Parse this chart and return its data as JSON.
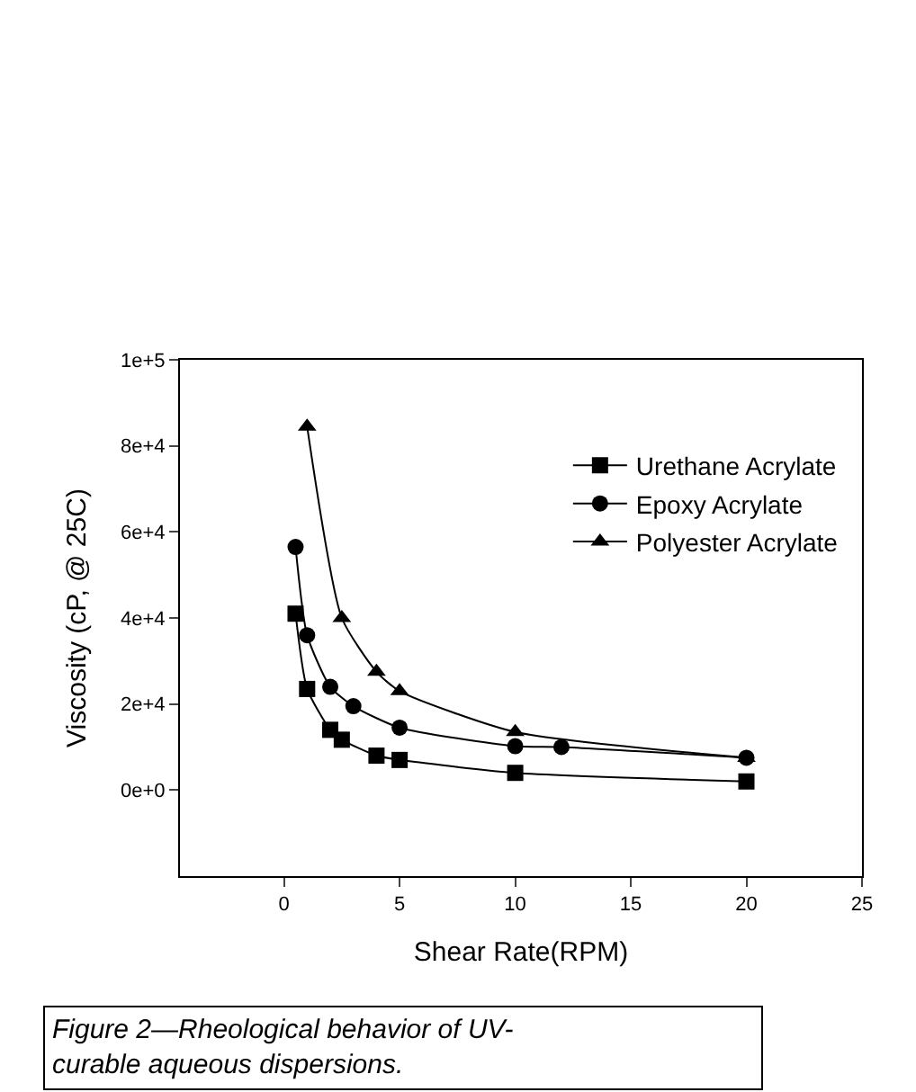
{
  "chart_data": {
    "type": "line",
    "xlabel": "Shear Rate(RPM)",
    "ylabel": "Viscosity (cP, @ 25C)",
    "xlim": [
      -4.5,
      25
    ],
    "xticks": [
      0,
      5,
      10,
      15,
      20,
      25
    ],
    "ylim": [
      -20000,
      100000
    ],
    "yticks": [
      {
        "value": 0,
        "label": "0e+0"
      },
      {
        "value": 20000,
        "label": "2e+4"
      },
      {
        "value": 40000,
        "label": "4e+4"
      },
      {
        "value": 60000,
        "label": "6e+4"
      },
      {
        "value": 80000,
        "label": "8e+4"
      },
      {
        "value": 100000,
        "label": "1e+5"
      }
    ],
    "legend": "top right",
    "line_style": "solid",
    "annotations": [
      "Figure 2—Rheological behavior of UV-curable aqueous dispersions."
    ],
    "series": [
      {
        "name": "Urethane Acrylate",
        "color": "#000000",
        "marker": "square",
        "x": [
          0.5,
          1,
          2,
          2.5,
          4,
          5,
          10,
          20
        ],
        "values": [
          41000,
          23500,
          14000,
          11700,
          8000,
          7000,
          4000,
          2000
        ]
      },
      {
        "name": "Epoxy Acrylate",
        "color": "#000000",
        "marker": "circle",
        "x": [
          0.5,
          1,
          2,
          3,
          5,
          10,
          12,
          20
        ],
        "values": [
          56500,
          36000,
          24000,
          19500,
          14500,
          10200,
          10000,
          7500
        ]
      },
      {
        "name": "Polyester Acrylate",
        "color": "#000000",
        "marker": "triangle",
        "x": [
          1,
          2.5,
          4,
          5,
          10,
          20
        ],
        "values": [
          84500,
          40000,
          27500,
          23000,
          13500,
          7500
        ]
      }
    ]
  }
}
